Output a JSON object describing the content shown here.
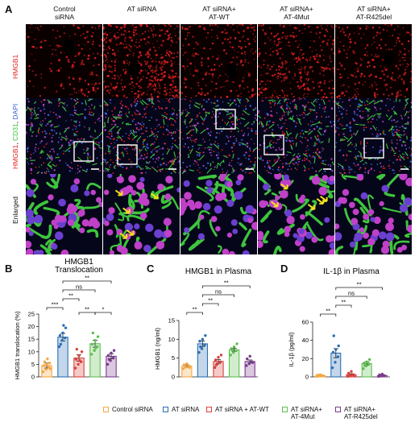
{
  "panels": {
    "a": "A",
    "b": "B",
    "c": "C",
    "d": "D"
  },
  "columns": [
    {
      "line1": "Control",
      "line2": "siRNA"
    },
    {
      "line1": "AT siRNA",
      "line2": ""
    },
    {
      "line1": "AT siRNA+",
      "line2": "AT-WT"
    },
    {
      "line1": "AT siRNA+",
      "line2": "AT-4Mut"
    },
    {
      "line1": "AT siRNA+",
      "line2": "AT-R425del"
    }
  ],
  "row_labels": {
    "row1": "HMGB1",
    "row2_parts": [
      "HMGB1",
      ", ",
      "CD31",
      ", ",
      "DAPI"
    ],
    "row3": "Enlarged"
  },
  "colors": {
    "control": "#f4a742",
    "at_sirna": "#2a6fb5",
    "at_wt": "#d9403b",
    "at_4mut": "#5cbf4f",
    "at_r425del": "#7a3a8c",
    "hmgb1_red": "#e02020",
    "cd31_green": "#3ec43e",
    "dapi_blue": "#3a5fd6"
  },
  "legend": [
    {
      "line1": "Control siRNA",
      "line2": ""
    },
    {
      "line1": "AT siRNA",
      "line2": ""
    },
    {
      "line1": "AT siRNA + AT-WT",
      "line2": ""
    },
    {
      "line1": "AT siRNA+",
      "line2": "AT-4Mut"
    },
    {
      "line1": "AT siRNA+",
      "line2": "AT-R425del"
    }
  ],
  "chart_data": [
    {
      "type": "bar",
      "title": "HMGB1\nTranslocation",
      "title_lines": [
        "HMGB1",
        "Translocation"
      ],
      "ylabel": "HMGB1 translocation (%)",
      "ylim": [
        0,
        25
      ],
      "yticks": [
        "0",
        "5",
        "10",
        "15",
        "20",
        "25"
      ],
      "means": [
        4.5,
        15.8,
        7.5,
        13.2,
        8.2
      ],
      "errors": [
        1.0,
        1.5,
        1.3,
        1.4,
        1.0
      ],
      "points": [
        [
          2.0,
          3.0,
          3.8,
          4.5,
          5.0,
          5.5,
          6.0,
          7.2,
          3.2
        ],
        [
          12.0,
          14.5,
          15.5,
          16.5,
          17.5,
          19.5,
          13.0,
          20.5
        ],
        [
          3.5,
          5.0,
          6.0,
          7.0,
          8.5,
          10.0,
          11.0,
          6.5
        ],
        [
          9.0,
          10.5,
          12.0,
          13.0,
          14.5,
          16.0,
          17.5,
          11.5
        ],
        [
          5.0,
          6.5,
          7.5,
          8.5,
          9.5,
          10.5,
          7.0
        ]
      ],
      "significance": [
        {
          "from": 0,
          "to": 1,
          "label": "***"
        },
        {
          "from": 1,
          "to": 2,
          "label": "**"
        },
        {
          "from": 1,
          "to": 3,
          "label": "ns"
        },
        {
          "from": 2,
          "to": 3,
          "label": "**"
        },
        {
          "from": 3,
          "to": 4,
          "label": "*"
        },
        {
          "from": 1,
          "to": 4,
          "label": "**"
        }
      ]
    },
    {
      "type": "bar",
      "title": "HMGB1 in Plasma",
      "title_lines": [
        "HMGB1 in Plasma"
      ],
      "ylabel": "HMGB1 (ng/ml)",
      "ylim": [
        0,
        15
      ],
      "yticks": [
        "0",
        "5",
        "10",
        "15"
      ],
      "means": [
        2.9,
        8.8,
        4.1,
        7.2,
        4.1
      ],
      "errors": [
        0.3,
        0.7,
        0.5,
        0.4,
        0.4
      ],
      "points": [
        [
          2.2,
          2.6,
          2.9,
          3.2,
          3.5,
          2.5
        ],
        [
          6.5,
          7.5,
          8.5,
          9.5,
          10.0,
          11.0,
          8.0
        ],
        [
          2.5,
          3.5,
          4.0,
          4.5,
          5.2,
          5.8,
          3.2
        ],
        [
          5.8,
          6.5,
          7.0,
          7.5,
          8.0,
          8.8,
          7.2
        ],
        [
          3.0,
          3.5,
          4.0,
          4.8,
          5.5,
          3.8
        ]
      ],
      "significance": [
        {
          "from": 0,
          "to": 1,
          "label": "**"
        },
        {
          "from": 1,
          "to": 2,
          "label": "**"
        },
        {
          "from": 1,
          "to": 3,
          "label": "ns"
        },
        {
          "from": 1,
          "to": 4,
          "label": "**"
        }
      ]
    },
    {
      "type": "bar",
      "title": "IL-1β in Plasma",
      "title_lines": [
        "IL-1β in Plasma"
      ],
      "ylabel": "IL-1β (pg/ml)",
      "ylim": [
        0,
        60
      ],
      "yticks": [
        "0",
        "20",
        "40",
        "60"
      ],
      "means": [
        1.5,
        26.0,
        2.5,
        14.5,
        1.5
      ],
      "errors": [
        0.4,
        5.0,
        1.0,
        1.8,
        0.5
      ],
      "points": [
        [
          0.5,
          1.0,
          1.5,
          2.0,
          2.2,
          1.2
        ],
        [
          10.0,
          16.0,
          22.0,
          27.0,
          30.0,
          34.0,
          45.0
        ],
        [
          0.5,
          1.5,
          2.5,
          4.0,
          6.0,
          1.0
        ],
        [
          9.0,
          12.0,
          14.0,
          15.0,
          16.5,
          19.0,
          12.5
        ],
        [
          0.5,
          1.0,
          1.5,
          2.2,
          3.0
        ]
      ],
      "significance": [
        {
          "from": 0,
          "to": 1,
          "label": "**"
        },
        {
          "from": 1,
          "to": 2,
          "label": "**"
        },
        {
          "from": 1,
          "to": 3,
          "label": "ns"
        },
        {
          "from": 1,
          "to": 4,
          "label": "**"
        }
      ]
    }
  ]
}
